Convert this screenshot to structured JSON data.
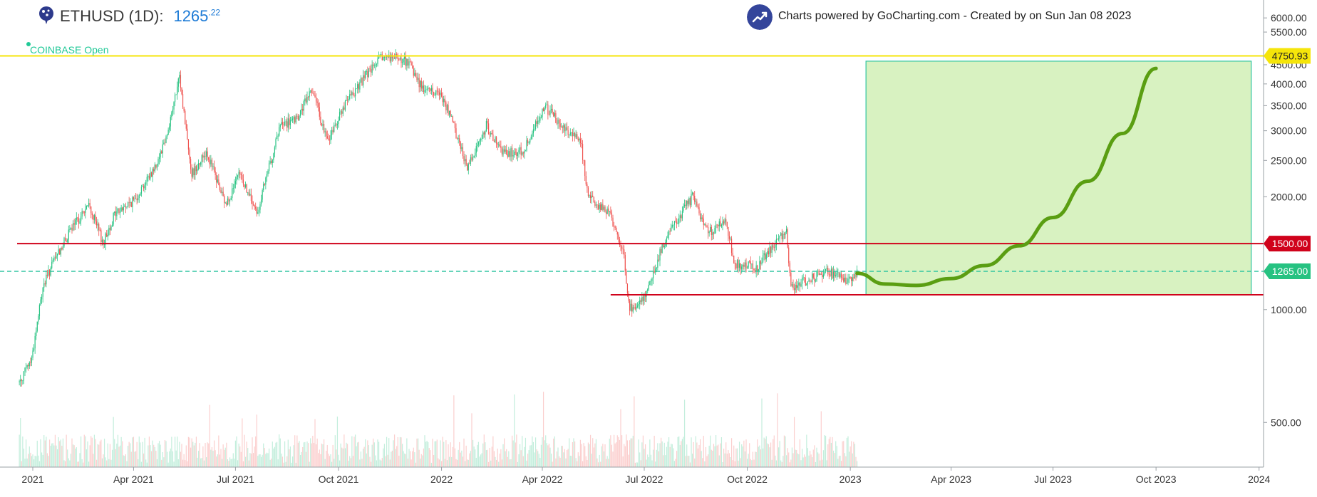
{
  "header": {
    "symbol_label": "ETHUSD (1D):",
    "price_main": "1265",
    "price_frac": ".22",
    "exchange_status": "COINBASE Open",
    "credit_text": "Charts powered by GoCharting.com - Created by  on Sun Jan 08 2023"
  },
  "colors": {
    "up": "#26c281",
    "down": "#ef5350",
    "resistance": "#d0021b",
    "ath_line": "#f5e50a",
    "current_line": "#2ec4a0",
    "projection": "#5a9e12",
    "target_zone": "#d8f2c1",
    "accent_blue": "#1e7bd6"
  },
  "chart_data": {
    "type": "candlestick",
    "title": "ETHUSD (1D)",
    "y_scale": "log",
    "ylim": [
      380,
      6300
    ],
    "y_ticks": [
      "6000.00",
      "5500.00",
      "4500.00",
      "4000.00",
      "3500.00",
      "3000.00",
      "2500.00",
      "2000.00",
      "1500.00",
      "1000.00",
      "500.00"
    ],
    "y_tick_values": [
      6000,
      5500,
      4500,
      4000,
      3500,
      3000,
      2500,
      2000,
      1500,
      1000,
      500
    ],
    "x_range": [
      "2020-12-18",
      "2024-01-05"
    ],
    "x_ticks": [
      {
        "date": "2021-01-01",
        "label": "2021"
      },
      {
        "date": "2021-04-01",
        "label": "Apr 2021"
      },
      {
        "date": "2021-07-01",
        "label": "Jul 2021"
      },
      {
        "date": "2021-10-01",
        "label": "Oct 2021"
      },
      {
        "date": "2022-01-01",
        "label": "2022"
      },
      {
        "date": "2022-04-01",
        "label": "Apr 2022"
      },
      {
        "date": "2022-07-01",
        "label": "Jul 2022"
      },
      {
        "date": "2022-10-01",
        "label": "Oct 2022"
      },
      {
        "date": "2023-01-01",
        "label": "2023"
      },
      {
        "date": "2023-04-01",
        "label": "Apr 2023"
      },
      {
        "date": "2023-07-01",
        "label": "Jul 2023"
      },
      {
        "date": "2023-10-01",
        "label": "Oct 2023"
      },
      {
        "date": "2024-01-01",
        "label": "2024"
      }
    ],
    "price_path": [
      [
        "2020-12-20",
        640
      ],
      [
        "2020-12-31",
        740
      ],
      [
        "2021-01-10",
        1150
      ],
      [
        "2021-01-20",
        1350
      ],
      [
        "2021-02-05",
        1650
      ],
      [
        "2021-02-20",
        1900
      ],
      [
        "2021-03-05",
        1500
      ],
      [
        "2021-03-15",
        1800
      ],
      [
        "2021-04-01",
        1950
      ],
      [
        "2021-04-20",
        2400
      ],
      [
        "2021-05-01",
        2950
      ],
      [
        "2021-05-12",
        4150
      ],
      [
        "2021-05-23",
        2300
      ],
      [
        "2021-06-05",
        2650
      ],
      [
        "2021-06-22",
        1900
      ],
      [
        "2021-07-05",
        2300
      ],
      [
        "2021-07-20",
        1800
      ],
      [
        "2021-08-10",
        3100
      ],
      [
        "2021-08-25",
        3200
      ],
      [
        "2021-09-07",
        3900
      ],
      [
        "2021-09-21",
        2800
      ],
      [
        "2021-10-05",
        3450
      ],
      [
        "2021-10-25",
        4200
      ],
      [
        "2021-11-10",
        4750
      ],
      [
        "2021-12-01",
        4600
      ],
      [
        "2021-12-15",
        3900
      ],
      [
        "2022-01-01",
        3750
      ],
      [
        "2022-01-10",
        3200
      ],
      [
        "2022-01-24",
        2400
      ],
      [
        "2022-02-10",
        3100
      ],
      [
        "2022-02-24",
        2600
      ],
      [
        "2022-03-15",
        2650
      ],
      [
        "2022-04-03",
        3500
      ],
      [
        "2022-04-20",
        3050
      ],
      [
        "2022-05-05",
        2850
      ],
      [
        "2022-05-12",
        2000
      ],
      [
        "2022-05-31",
        1800
      ],
      [
        "2022-06-12",
        1450
      ],
      [
        "2022-06-18",
        1000
      ],
      [
        "2022-07-01",
        1080
      ],
      [
        "2022-07-20",
        1550
      ],
      [
        "2022-08-13",
        2000
      ],
      [
        "2022-08-27",
        1600
      ],
      [
        "2022-09-12",
        1720
      ],
      [
        "2022-09-20",
        1320
      ],
      [
        "2022-10-10",
        1300
      ],
      [
        "2022-10-25",
        1500
      ],
      [
        "2022-11-05",
        1620
      ],
      [
        "2022-11-09",
        1150
      ],
      [
        "2022-11-25",
        1200
      ],
      [
        "2022-12-10",
        1270
      ],
      [
        "2022-12-30",
        1200
      ],
      [
        "2023-01-07",
        1265
      ]
    ],
    "levels": [
      {
        "name": "ath",
        "value": 4750.93,
        "label": "4750.93"
      },
      {
        "name": "resistance",
        "value": 1500.0,
        "label": "1500.00"
      },
      {
        "name": "current",
        "value": 1265.0,
        "label": "1265.00"
      },
      {
        "name": "support",
        "value": 1095
      }
    ],
    "target_zone": {
      "x_start": "2023-01-15",
      "x_end": "2023-12-25",
      "y_low": 1095,
      "y_high": 4600
    },
    "projection_curve": [
      [
        "2023-01-07",
        1250
      ],
      [
        "2023-02-01",
        1170
      ],
      [
        "2023-03-01",
        1160
      ],
      [
        "2023-04-01",
        1210
      ],
      [
        "2023-05-01",
        1310
      ],
      [
        "2023-06-01",
        1480
      ],
      [
        "2023-07-01",
        1760
      ],
      [
        "2023-08-01",
        2200
      ],
      [
        "2023-09-01",
        2950
      ],
      [
        "2023-10-01",
        4400
      ]
    ]
  }
}
